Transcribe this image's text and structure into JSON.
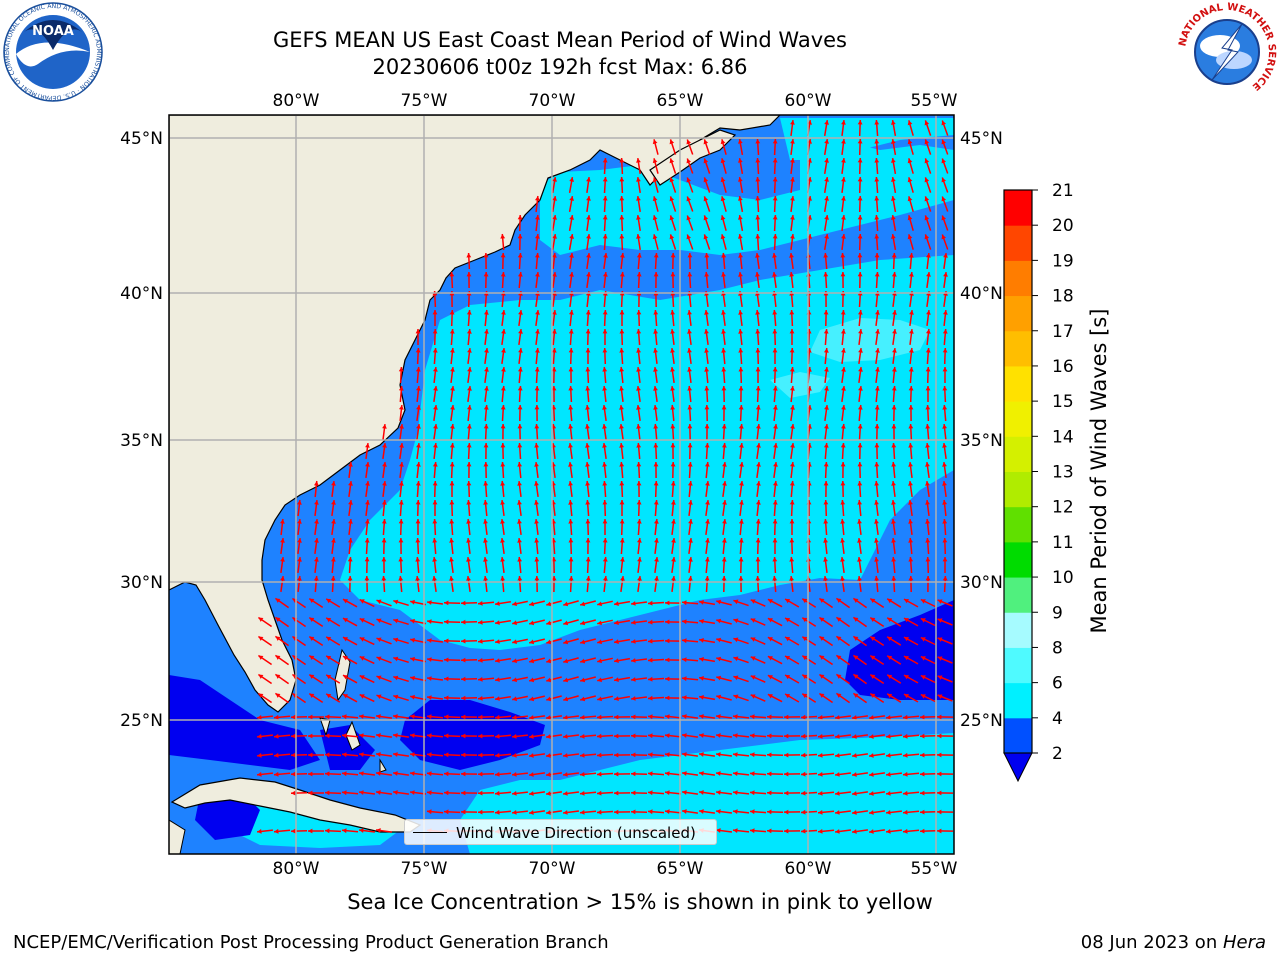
{
  "title": {
    "line1": "GEFS MEAN US East Coast Mean Period of Wind Waves",
    "line2": "20230606 t00z 192h fcst   Max: 6.86"
  },
  "map": {
    "lon_ticks": [
      "80°W",
      "75°W",
      "70°W",
      "65°W",
      "60°W",
      "55°W"
    ],
    "lat_ticks": [
      "45°N",
      "40°N",
      "35°N",
      "30°N",
      "25°N"
    ],
    "lon_range": [
      -85,
      -54.3
    ],
    "lat_range": [
      20.5,
      45.8
    ],
    "colors": {
      "land": "#efedde",
      "ocean_2_4": "#1e82ff",
      "ocean_4_6": "#00e6ff",
      "ocean_6_8": "#46f0ff",
      "ocean_below_2": "#0000f0",
      "arrows": "#ff0000",
      "grid": "#b0b0b0"
    },
    "legend_label": "Wind Wave Direction (unscaled)"
  },
  "colorbar": {
    "label": "Mean Period of Wind Waves [s]",
    "ticks": [
      "2",
      "4",
      "6",
      "8",
      "9",
      "10",
      "11",
      "12",
      "13",
      "14",
      "15",
      "16",
      "17",
      "18",
      "19",
      "20",
      "21"
    ],
    "colors": [
      "#0050ff",
      "#00f0ff",
      "#4ffaff",
      "#a6fbff",
      "#50f07e",
      "#00dc00",
      "#60e000",
      "#b0ec00",
      "#d4f000",
      "#f0f000",
      "#ffe100",
      "#ffbe00",
      "#ffa000",
      "#ff7d00",
      "#ff4600",
      "#ff2000",
      "#ff0000"
    ],
    "extend_color": "#0000f0"
  },
  "subtitle": "Sea Ice Concentration > 15% is shown in pink to yellow",
  "footer": {
    "left": "NCEP/EMC/Verification Post Processing Product Generation Branch",
    "right_date": "08 Jun 2023 on ",
    "right_host": "Hera"
  },
  "logos": {
    "noaa_text": "NOAA",
    "noaa_ring": "NATIONAL OCEANIC AND ATMOSPHERIC ADMINISTRATION · U.S. DEPARTMENT OF COMMERCE",
    "nws_ring": "NATIONAL WEATHER SERVICE"
  }
}
